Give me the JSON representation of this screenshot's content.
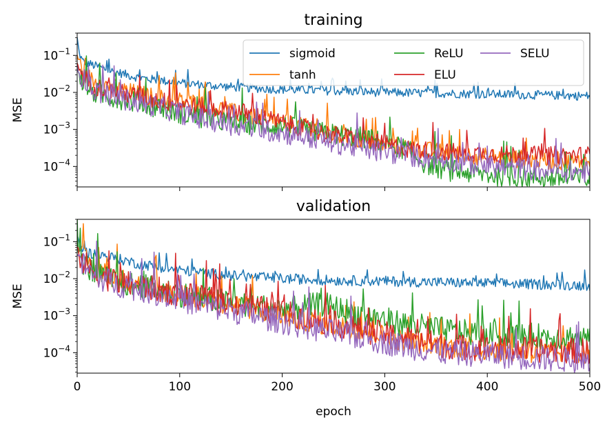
{
  "chart_data": [
    {
      "type": "line",
      "title": "training",
      "xlabel": "",
      "ylabel": "MSE",
      "xlim": [
        0,
        500
      ],
      "ylim": [
        2.8e-05,
        0.4
      ],
      "yscale": "log",
      "xticks": [
        0,
        100,
        200,
        300,
        400,
        500
      ],
      "show_xtick_labels": false,
      "yticks": [
        {
          "value": 0.1,
          "base": "10",
          "exp": "−1"
        },
        {
          "value": 0.01,
          "base": "10",
          "exp": "−2"
        },
        {
          "value": 0.001,
          "base": "10",
          "exp": "−3"
        },
        {
          "value": 0.0001,
          "base": "10",
          "exp": "−4"
        }
      ],
      "grid": false,
      "legend": {
        "placement": "upper-right",
        "columns": 3,
        "order": [
          "sigmoid",
          "tanh",
          "ReLU",
          "ELU",
          "SELU"
        ]
      },
      "series": [
        {
          "name": "sigmoid",
          "color": "#1f77b4",
          "noise": 0.12,
          "points": [
            [
              0,
              0.3
            ],
            [
              2,
              0.12
            ],
            [
              5,
              0.07
            ],
            [
              15,
              0.055
            ],
            [
              30,
              0.04
            ],
            [
              60,
              0.025
            ],
            [
              100,
              0.018
            ],
            [
              150,
              0.014
            ],
            [
              200,
              0.012
            ],
            [
              250,
              0.011
            ],
            [
              300,
              0.01
            ],
            [
              350,
              0.0095
            ],
            [
              400,
              0.009
            ],
            [
              450,
              0.0085
            ],
            [
              500,
              0.008
            ]
          ]
        },
        {
          "name": "tanh",
          "color": "#ff7f0e",
          "noise": 0.25,
          "points": [
            [
              0,
              0.1
            ],
            [
              5,
              0.04
            ],
            [
              15,
              0.02
            ],
            [
              40,
              0.012
            ],
            [
              80,
              0.007
            ],
            [
              120,
              0.005
            ],
            [
              160,
              0.0025
            ],
            [
              200,
              0.0015
            ],
            [
              240,
              0.0009
            ],
            [
              260,
              0.0006
            ],
            [
              300,
              0.0004
            ],
            [
              350,
              0.00025
            ],
            [
              400,
              0.00018
            ],
            [
              450,
              0.00015
            ],
            [
              500,
              0.00013
            ]
          ]
        },
        {
          "name": "ReLU",
          "color": "#2ca02c",
          "noise": 0.3,
          "points": [
            [
              0,
              0.05
            ],
            [
              5,
              0.02
            ],
            [
              15,
              0.01
            ],
            [
              40,
              0.007
            ],
            [
              80,
              0.004
            ],
            [
              120,
              0.002
            ],
            [
              160,
              0.0015
            ],
            [
              200,
              0.0012
            ],
            [
              240,
              0.0008
            ],
            [
              280,
              0.0006
            ],
            [
              320,
              0.0003
            ],
            [
              340,
              0.00012
            ],
            [
              360,
              8e-05
            ],
            [
              400,
              6e-05
            ],
            [
              450,
              5e-05
            ],
            [
              500,
              4.5e-05
            ]
          ]
        },
        {
          "name": "ELU",
          "color": "#d62728",
          "noise": 0.25,
          "points": [
            [
              0,
              0.06
            ],
            [
              5,
              0.03
            ],
            [
              15,
              0.015
            ],
            [
              40,
              0.01
            ],
            [
              80,
              0.006
            ],
            [
              120,
              0.004
            ],
            [
              160,
              0.003
            ],
            [
              200,
              0.0015
            ],
            [
              240,
              0.0008
            ],
            [
              280,
              0.0005
            ],
            [
              320,
              0.0003
            ],
            [
              360,
              0.00025
            ],
            [
              400,
              0.00022
            ],
            [
              450,
              0.0002
            ],
            [
              500,
              0.0002
            ]
          ]
        },
        {
          "name": "SELU",
          "color": "#9467bd",
          "noise": 0.3,
          "points": [
            [
              0,
              0.05
            ],
            [
              5,
              0.025
            ],
            [
              15,
              0.012
            ],
            [
              40,
              0.007
            ],
            [
              80,
              0.004
            ],
            [
              120,
              0.002
            ],
            [
              160,
              0.0012
            ],
            [
              200,
              0.0008
            ],
            [
              240,
              0.0005
            ],
            [
              280,
              0.0003
            ],
            [
              320,
              0.0002
            ],
            [
              360,
              0.00015
            ],
            [
              380,
              0.00012
            ],
            [
              400,
              0.0001
            ],
            [
              450,
              8e-05
            ],
            [
              500,
              7e-05
            ]
          ]
        }
      ]
    },
    {
      "type": "line",
      "title": "validation",
      "xlabel": "epoch",
      "ylabel": "MSE",
      "xlim": [
        0,
        500
      ],
      "ylim": [
        2.8e-05,
        0.4
      ],
      "yscale": "log",
      "xticks": [
        0,
        100,
        200,
        300,
        400,
        500
      ],
      "show_xtick_labels": true,
      "yticks": [
        {
          "value": 0.1,
          "base": "10",
          "exp": "−1"
        },
        {
          "value": 0.01,
          "base": "10",
          "exp": "−2"
        },
        {
          "value": 0.001,
          "base": "10",
          "exp": "−3"
        },
        {
          "value": 0.0001,
          "base": "10",
          "exp": "−4"
        }
      ],
      "grid": false,
      "series": [
        {
          "name": "sigmoid",
          "color": "#1f77b4",
          "noise": 0.14,
          "points": [
            [
              0,
              0.15
            ],
            [
              3,
              0.07
            ],
            [
              10,
              0.05
            ],
            [
              30,
              0.04
            ],
            [
              60,
              0.025
            ],
            [
              100,
              0.017
            ],
            [
              150,
              0.012
            ],
            [
              200,
              0.01
            ],
            [
              250,
              0.009
            ],
            [
              300,
              0.0085
            ],
            [
              350,
              0.008
            ],
            [
              400,
              0.0075
            ],
            [
              450,
              0.007
            ],
            [
              500,
              0.0065
            ]
          ]
        },
        {
          "name": "tanh",
          "color": "#ff7f0e",
          "noise": 0.3,
          "points": [
            [
              0,
              0.08
            ],
            [
              5,
              0.04
            ],
            [
              15,
              0.02
            ],
            [
              40,
              0.01
            ],
            [
              80,
              0.005
            ],
            [
              120,
              0.003
            ],
            [
              160,
              0.0018
            ],
            [
              200,
              0.001
            ],
            [
              240,
              0.0006
            ],
            [
              280,
              0.0004
            ],
            [
              320,
              0.0002
            ],
            [
              360,
              0.00015
            ],
            [
              400,
              0.00012
            ],
            [
              450,
              0.0001
            ],
            [
              500,
              0.0001
            ]
          ]
        },
        {
          "name": "ReLU",
          "color": "#2ca02c",
          "noise": 0.35,
          "points": [
            [
              0,
              0.06
            ],
            [
              5,
              0.03
            ],
            [
              15,
              0.015
            ],
            [
              40,
              0.008
            ],
            [
              80,
              0.005
            ],
            [
              120,
              0.003
            ],
            [
              160,
              0.002
            ],
            [
              200,
              0.0015
            ],
            [
              240,
              0.002
            ],
            [
              280,
              0.001
            ],
            [
              320,
              0.0006
            ],
            [
              360,
              0.0004
            ],
            [
              400,
              0.0003
            ],
            [
              450,
              0.00028
            ],
            [
              500,
              0.00025
            ]
          ]
        },
        {
          "name": "ELU",
          "color": "#d62728",
          "noise": 0.35,
          "points": [
            [
              0,
              0.06
            ],
            [
              5,
              0.03
            ],
            [
              15,
              0.015
            ],
            [
              40,
              0.008
            ],
            [
              80,
              0.005
            ],
            [
              120,
              0.003
            ],
            [
              160,
              0.002
            ],
            [
              200,
              0.0012
            ],
            [
              240,
              0.0007
            ],
            [
              280,
              0.0004
            ],
            [
              320,
              0.00025
            ],
            [
              360,
              0.00015
            ],
            [
              400,
              0.00013
            ],
            [
              450,
              0.00012
            ],
            [
              500,
              0.00011
            ]
          ]
        },
        {
          "name": "SELU",
          "color": "#9467bd",
          "noise": 0.35,
          "points": [
            [
              0,
              0.05
            ],
            [
              5,
              0.025
            ],
            [
              15,
              0.012
            ],
            [
              40,
              0.007
            ],
            [
              80,
              0.004
            ],
            [
              120,
              0.002
            ],
            [
              160,
              0.0012
            ],
            [
              200,
              0.0007
            ],
            [
              240,
              0.0004
            ],
            [
              280,
              0.00025
            ],
            [
              320,
              0.00015
            ],
            [
              360,
              0.0001
            ],
            [
              400,
              9e-05
            ],
            [
              450,
              7e-05
            ],
            [
              500,
              6e-05
            ]
          ]
        }
      ]
    }
  ]
}
